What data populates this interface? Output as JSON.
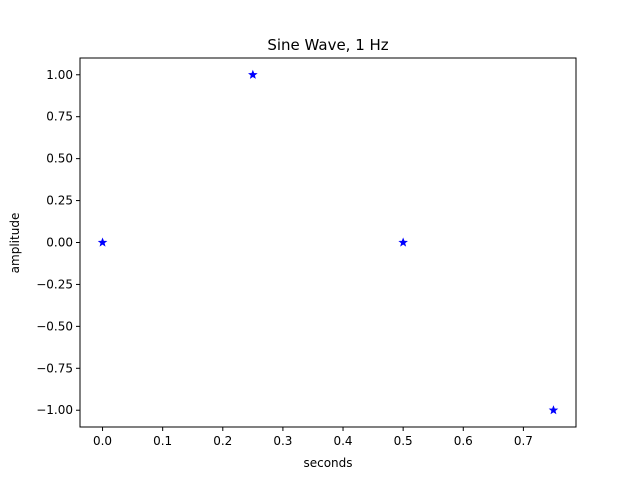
{
  "chart_data": {
    "type": "scatter",
    "title": "Sine Wave, 1 Hz",
    "xlabel": "seconds",
    "ylabel": "amplitude",
    "xlim": [
      -0.0375,
      0.7875
    ],
    "ylim": [
      -1.1,
      1.1
    ],
    "xticks": [
      0.0,
      0.1,
      0.2,
      0.3,
      0.4,
      0.5,
      0.6,
      0.7
    ],
    "xtick_labels": [
      "0.0",
      "0.1",
      "0.2",
      "0.3",
      "0.4",
      "0.5",
      "0.6",
      "0.7"
    ],
    "yticks": [
      -1.0,
      -0.75,
      -0.5,
      -0.25,
      0.0,
      0.25,
      0.5,
      0.75,
      1.0
    ],
    "ytick_labels": [
      "−1.00",
      "−0.75",
      "−0.50",
      "−0.25",
      "0.00",
      "0.25",
      "0.50",
      "0.75",
      "1.00"
    ],
    "grid": false,
    "marker": "star",
    "color": "#0000ff",
    "series": [
      {
        "x": [
          0.0,
          0.25,
          0.5,
          0.75
        ],
        "y": [
          0.0,
          1.0,
          0.0,
          -1.0
        ]
      }
    ]
  }
}
